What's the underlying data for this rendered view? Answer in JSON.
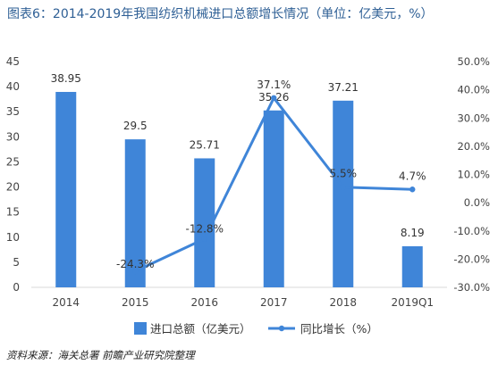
{
  "title": "图表6：2014-2019年我国纺织机械进口总额增长情况（单位：亿美元，%）",
  "source": "资料来源：海关总署 前瞻产业研究院整理",
  "colors": {
    "bar": "#3f85d8",
    "line": "#3f85d8",
    "axis_text": "#444444",
    "grid": "#d9d9d9",
    "title": "#2e5f95"
  },
  "chart_data": {
    "type": "bar",
    "categories": [
      "2014",
      "2015",
      "2016",
      "2017",
      "2018",
      "2019Q1"
    ],
    "series": [
      {
        "name": "进口总额（亿美元）",
        "type": "bar",
        "axis": "left",
        "values": [
          38.95,
          29.5,
          25.71,
          35.26,
          37.21,
          8.19
        ],
        "labels": [
          "38.95",
          "29.5",
          "25.71",
          "35.26",
          "37.21",
          "8.19"
        ]
      },
      {
        "name": "同比增长（%）",
        "type": "line",
        "axis": "right",
        "values": [
          null,
          -24.3,
          -12.8,
          37.1,
          5.5,
          4.7
        ],
        "labels": [
          "",
          "-24.3%",
          "-12.8%",
          "37.1%",
          "5.5%",
          "4.7%"
        ]
      }
    ],
    "y_left": {
      "ylim": [
        0,
        45
      ],
      "ticks": [
        "0",
        "5",
        "10",
        "15",
        "20",
        "25",
        "30",
        "35",
        "40",
        "45"
      ]
    },
    "y_right": {
      "ylim": [
        -30,
        50
      ],
      "ticks": [
        "-30.0%",
        "-20.0%",
        "-10.0%",
        "0.0%",
        "10.0%",
        "20.0%",
        "30.0%",
        "40.0%",
        "50.0%"
      ]
    },
    "legend_position": "bottom",
    "grid": false
  }
}
